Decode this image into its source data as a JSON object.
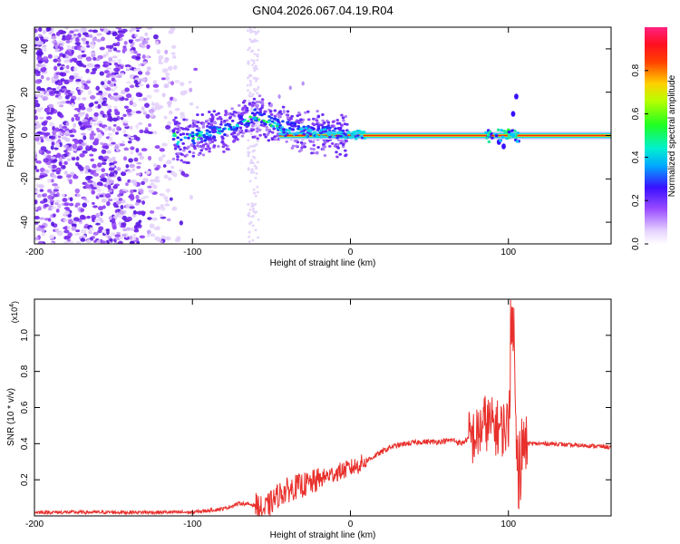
{
  "title": "GN04.2026.067.04.19.R04",
  "chart_data": [
    {
      "type": "heatmap",
      "title": "GN04.2026.067.04.19.R04",
      "xlabel": "Height of straight line (km)",
      "ylabel": "Frequency (Hz)",
      "xlim": [
        -200,
        165
      ],
      "ylim": [
        -50,
        50
      ],
      "x_ticks": [
        -200,
        -100,
        0,
        100
      ],
      "y_ticks": [
        -40,
        -20,
        0,
        20,
        40
      ],
      "colorbar": {
        "label": "Normalized spectral amplitude",
        "range": [
          0.0,
          1.0
        ],
        "ticks": [
          "0.0",
          "0.2",
          "0.4",
          "0.6",
          "0.8"
        ]
      },
      "features": {
        "noise_region_x": [
          -200,
          -95
        ],
        "faint_streak_x": [
          -65,
          -58
        ],
        "rising_band": [
          [
            -110,
            -3
          ],
          [
            -95,
            0
          ],
          [
            -80,
            3
          ],
          [
            -70,
            6
          ],
          [
            -60,
            9
          ],
          [
            -55,
            8
          ],
          [
            -45,
            4
          ],
          [
            -30,
            2
          ],
          [
            -10,
            1
          ],
          [
            0,
            0.5
          ]
        ],
        "carrier_line": {
          "x": [
            -45,
            165
          ],
          "y": 0
        },
        "feature_near_100": [
          [
            94,
            -3
          ],
          [
            97,
            -5
          ],
          [
            100,
            2
          ],
          [
            103,
            10
          ],
          [
            105,
            18
          ]
        ]
      }
    },
    {
      "type": "line",
      "xlabel": "Height of straight line (km)",
      "ylabel": "SNR (10 * v/v)",
      "y_multiplier": "(x10",
      "y_multiplier_exp": "4",
      "xlim": [
        -200,
        165
      ],
      "ylim": [
        0,
        1.2
      ],
      "x_ticks": [
        -200,
        -100,
        0,
        100
      ],
      "y_ticks": [
        "0.2",
        "0.4",
        "0.6",
        "0.8",
        "1.0"
      ],
      "series": [
        {
          "color": "#e8302c",
          "x": [
            -200,
            -150,
            -100,
            -80,
            -70,
            -60,
            -55,
            -45,
            -35,
            -25,
            -15,
            -5,
            5,
            15,
            25,
            35,
            45,
            55,
            65,
            70,
            75,
            80,
            85,
            90,
            95,
            100,
            103,
            105,
            108,
            112,
            120,
            130,
            140,
            150,
            165
          ],
          "y": [
            0.02,
            0.02,
            0.02,
            0.04,
            0.07,
            0.06,
            0.03,
            0.12,
            0.16,
            0.18,
            0.22,
            0.25,
            0.28,
            0.33,
            0.38,
            0.4,
            0.41,
            0.41,
            0.42,
            0.4,
            0.43,
            0.44,
            0.52,
            0.5,
            0.48,
            0.5,
            1.15,
            0.35,
            0.38,
            0.4,
            0.4,
            0.4,
            0.39,
            0.39,
            0.38
          ]
        }
      ]
    }
  ]
}
